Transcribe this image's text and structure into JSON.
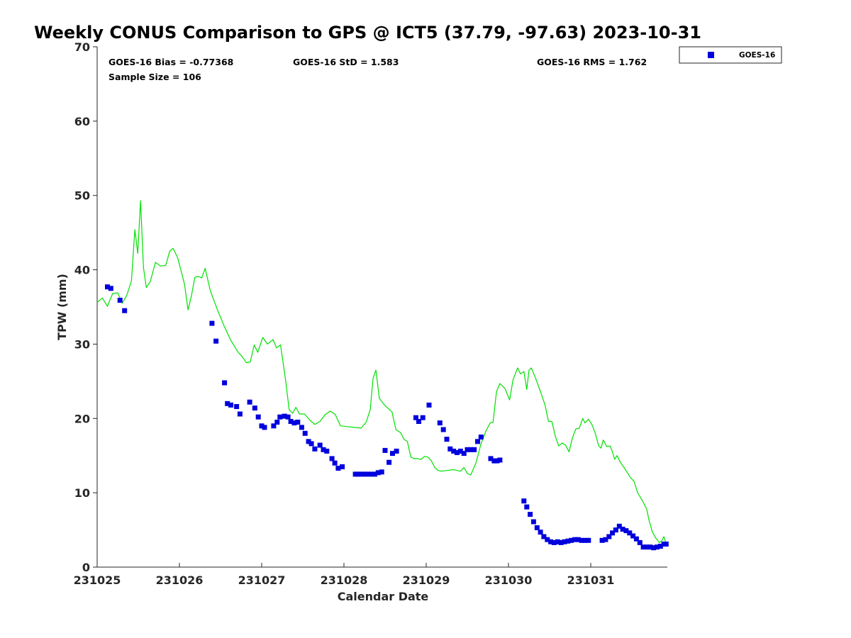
{
  "chart_data": {
    "type": "scatter",
    "title": "Weekly CONUS Comparison to GPS @ ICT5 (37.79, -97.63) 2023-10-31",
    "xlabel": "Calendar Date",
    "ylabel": "TPW (mm)",
    "xlim": [
      "2023-10-25",
      "2023-10-31T22:00"
    ],
    "ylim": [
      0,
      70
    ],
    "x_tick_labels": [
      "231025",
      "231026",
      "231027",
      "231028",
      "231029",
      "231030",
      "231031"
    ],
    "y_tick_labels": [
      "0",
      "10",
      "20",
      "30",
      "40",
      "50",
      "60",
      "70"
    ],
    "grid": false,
    "legend_position": "top-right, outside plot",
    "stats": {
      "bias": "GOES-16 Bias = -0.77368",
      "std": "GOES-16 StD = 1.583",
      "rms": "GOES-16 RMS = 1.762",
      "sample": "Sample Size = 106"
    },
    "legend": [
      {
        "label": "GOES-16",
        "color": "#0000dd",
        "marker": "square"
      }
    ],
    "colors": {
      "goes": "#0000dd",
      "gps": "#00e000"
    },
    "series": [
      {
        "name": "GOES-16",
        "marker": "square",
        "color": "#0000dd",
        "points": [
          [
            "2023-10-25T03:00",
            37.7
          ],
          [
            "2023-10-25T04:00",
            37.5
          ],
          [
            "2023-10-25T06:40",
            35.9
          ],
          [
            "2023-10-25T08:00",
            34.5
          ],
          [
            "2023-10-26T09:30",
            32.8
          ],
          [
            "2023-10-26T10:40",
            30.4
          ],
          [
            "2023-10-26T13:10",
            24.8
          ],
          [
            "2023-10-26T14:00",
            22.0
          ],
          [
            "2023-10-26T15:00",
            21.8
          ],
          [
            "2023-10-26T16:40",
            21.6
          ],
          [
            "2023-10-26T17:40",
            20.6
          ],
          [
            "2023-10-26T20:30",
            22.2
          ],
          [
            "2023-10-26T22:00",
            21.4
          ],
          [
            "2023-10-26T23:00",
            20.2
          ],
          [
            "2023-10-27T00:00",
            19.0
          ],
          [
            "2023-10-27T00:50",
            18.8
          ],
          [
            "2023-10-27T03:30",
            19.0
          ],
          [
            "2023-10-27T04:30",
            19.5
          ],
          [
            "2023-10-27T05:20",
            20.2
          ],
          [
            "2023-10-27T06:40",
            20.3
          ],
          [
            "2023-10-27T07:40",
            20.2
          ],
          [
            "2023-10-27T08:30",
            19.6
          ],
          [
            "2023-10-27T09:30",
            19.4
          ],
          [
            "2023-10-27T10:30",
            19.5
          ],
          [
            "2023-10-27T11:40",
            18.8
          ],
          [
            "2023-10-27T12:40",
            18.0
          ],
          [
            "2023-10-27T13:40",
            16.9
          ],
          [
            "2023-10-27T14:30",
            16.6
          ],
          [
            "2023-10-27T15:30",
            15.9
          ],
          [
            "2023-10-27T17:00",
            16.4
          ],
          [
            "2023-10-27T18:00",
            15.8
          ],
          [
            "2023-10-27T19:00",
            15.6
          ],
          [
            "2023-10-27T20:30",
            14.6
          ],
          [
            "2023-10-27T21:20",
            14.0
          ],
          [
            "2023-10-27T22:20",
            13.3
          ],
          [
            "2023-10-27T23:30",
            13.5
          ],
          [
            "2023-10-28T03:20",
            12.5
          ],
          [
            "2023-10-28T04:00",
            12.5
          ],
          [
            "2023-10-28T05:00",
            12.5
          ],
          [
            "2023-10-28T06:00",
            12.5
          ],
          [
            "2023-10-28T07:00",
            12.5
          ],
          [
            "2023-10-28T08:00",
            12.5
          ],
          [
            "2023-10-28T09:00",
            12.5
          ],
          [
            "2023-10-28T10:00",
            12.7
          ],
          [
            "2023-10-28T11:00",
            12.8
          ],
          [
            "2023-10-28T12:00",
            15.7
          ],
          [
            "2023-10-28T13:10",
            14.1
          ],
          [
            "2023-10-28T14:10",
            15.3
          ],
          [
            "2023-10-28T15:20",
            15.6
          ],
          [
            "2023-10-28T21:00",
            20.1
          ],
          [
            "2023-10-28T21:50",
            19.6
          ],
          [
            "2023-10-28T23:00",
            20.1
          ],
          [
            "2023-10-29T00:50",
            21.8
          ],
          [
            "2023-10-29T04:00",
            19.4
          ],
          [
            "2023-10-29T05:00",
            18.5
          ],
          [
            "2023-10-29T06:00",
            17.2
          ],
          [
            "2023-10-29T07:00",
            15.9
          ],
          [
            "2023-10-29T08:00",
            15.6
          ],
          [
            "2023-10-29T09:00",
            15.4
          ],
          [
            "2023-10-29T10:00",
            15.6
          ],
          [
            "2023-10-29T11:00",
            15.3
          ],
          [
            "2023-10-29T12:00",
            15.8
          ],
          [
            "2023-10-29T13:00",
            15.8
          ],
          [
            "2023-10-29T14:00",
            15.8
          ],
          [
            "2023-10-29T15:00",
            16.9
          ],
          [
            "2023-10-29T16:00",
            17.5
          ],
          [
            "2023-10-29T18:50",
            14.6
          ],
          [
            "2023-10-29T19:50",
            14.3
          ],
          [
            "2023-10-29T20:40",
            14.3
          ],
          [
            "2023-10-29T21:30",
            14.4
          ],
          [
            "2023-10-30T04:30",
            8.9
          ],
          [
            "2023-10-30T05:20",
            8.1
          ],
          [
            "2023-10-30T06:20",
            7.1
          ],
          [
            "2023-10-30T07:20",
            6.1
          ],
          [
            "2023-10-30T08:20",
            5.3
          ],
          [
            "2023-10-30T09:20",
            4.7
          ],
          [
            "2023-10-30T10:20",
            4.1
          ],
          [
            "2023-10-30T11:20",
            3.7
          ],
          [
            "2023-10-30T12:20",
            3.4
          ],
          [
            "2023-10-30T13:20",
            3.3
          ],
          [
            "2023-10-30T14:20",
            3.4
          ],
          [
            "2023-10-30T15:20",
            3.3
          ],
          [
            "2023-10-30T16:20",
            3.4
          ],
          [
            "2023-10-30T17:20",
            3.5
          ],
          [
            "2023-10-30T18:20",
            3.6
          ],
          [
            "2023-10-30T19:20",
            3.7
          ],
          [
            "2023-10-30T20:20",
            3.7
          ],
          [
            "2023-10-30T21:20",
            3.6
          ],
          [
            "2023-10-30T22:20",
            3.6
          ],
          [
            "2023-10-30T23:20",
            3.6
          ],
          [
            "2023-10-31T03:20",
            3.6
          ],
          [
            "2023-10-31T04:20",
            3.7
          ],
          [
            "2023-10-31T05:20",
            4.1
          ],
          [
            "2023-10-31T06:20",
            4.6
          ],
          [
            "2023-10-31T07:20",
            5.0
          ],
          [
            "2023-10-31T08:20",
            5.5
          ],
          [
            "2023-10-31T09:20",
            5.1
          ],
          [
            "2023-10-31T10:20",
            4.9
          ],
          [
            "2023-10-31T11:20",
            4.6
          ],
          [
            "2023-10-31T12:20",
            4.2
          ],
          [
            "2023-10-31T13:20",
            3.8
          ],
          [
            "2023-10-31T14:20",
            3.3
          ],
          [
            "2023-10-31T15:20",
            2.7
          ],
          [
            "2023-10-31T16:20",
            2.7
          ],
          [
            "2023-10-31T17:20",
            2.7
          ],
          [
            "2023-10-31T18:20",
            2.6
          ],
          [
            "2023-10-31T19:20",
            2.7
          ],
          [
            "2023-10-31T20:20",
            2.8
          ],
          [
            "2023-10-31T21:20",
            3.1
          ],
          [
            "2023-10-31T22:00",
            3.1
          ]
        ]
      },
      {
        "marker": "line",
        "color": "#00e000",
        "points": [
          [
            "2023-10-25T00:00",
            35.6
          ],
          [
            "2023-10-25T01:30",
            36.2
          ],
          [
            "2023-10-25T03:00",
            35.1
          ],
          [
            "2023-10-25T04:30",
            36.8
          ],
          [
            "2023-10-25T06:00",
            36.9
          ],
          [
            "2023-10-25T07:20",
            35.5
          ],
          [
            "2023-10-25T08:40",
            36.6
          ],
          [
            "2023-10-25T10:00",
            38.5
          ],
          [
            "2023-10-25T11:00",
            45.4
          ],
          [
            "2023-10-25T11:50",
            42.2
          ],
          [
            "2023-10-25T12:40",
            49.3
          ],
          [
            "2023-10-25T13:30",
            40.3
          ],
          [
            "2023-10-25T14:20",
            37.6
          ],
          [
            "2023-10-25T15:30",
            38.4
          ],
          [
            "2023-10-25T17:00",
            41.0
          ],
          [
            "2023-10-25T18:30",
            40.5
          ],
          [
            "2023-10-25T20:00",
            40.6
          ],
          [
            "2023-10-25T21:10",
            42.5
          ],
          [
            "2023-10-25T22:10",
            42.9
          ],
          [
            "2023-10-25T23:30",
            41.6
          ],
          [
            "2023-10-26T01:30",
            38.0
          ],
          [
            "2023-10-26T02:30",
            34.6
          ],
          [
            "2023-10-26T03:30",
            36.5
          ],
          [
            "2023-10-26T04:30",
            39.0
          ],
          [
            "2023-10-26T05:30",
            39.1
          ],
          [
            "2023-10-26T06:30",
            38.9
          ],
          [
            "2023-10-26T07:30",
            40.2
          ],
          [
            "2023-10-26T09:00",
            37.2
          ],
          [
            "2023-10-26T11:00",
            34.7
          ],
          [
            "2023-10-26T13:00",
            32.5
          ],
          [
            "2023-10-26T15:00",
            30.5
          ],
          [
            "2023-10-26T17:00",
            29.0
          ],
          [
            "2023-10-26T18:30",
            28.2
          ],
          [
            "2023-10-26T19:30",
            27.5
          ],
          [
            "2023-10-26T20:40",
            27.6
          ],
          [
            "2023-10-26T21:50",
            29.9
          ],
          [
            "2023-10-26T22:50",
            28.9
          ],
          [
            "2023-10-27T00:20",
            30.9
          ],
          [
            "2023-10-27T01:40",
            30.0
          ],
          [
            "2023-10-27T03:20",
            30.6
          ],
          [
            "2023-10-27T04:20",
            29.5
          ],
          [
            "2023-10-27T05:30",
            29.9
          ],
          [
            "2023-10-27T07:00",
            25.1
          ],
          [
            "2023-10-27T08:00",
            21.2
          ],
          [
            "2023-10-27T09:00",
            20.7
          ],
          [
            "2023-10-27T10:00",
            21.5
          ],
          [
            "2023-10-27T11:00",
            20.6
          ],
          [
            "2023-10-27T12:30",
            20.6
          ],
          [
            "2023-10-27T14:00",
            19.8
          ],
          [
            "2023-10-27T15:30",
            19.2
          ],
          [
            "2023-10-27T17:00",
            19.6
          ],
          [
            "2023-10-27T18:30",
            20.5
          ],
          [
            "2023-10-27T20:00",
            21.0
          ],
          [
            "2023-10-27T21:30",
            20.5
          ],
          [
            "2023-10-27T23:00",
            19.0
          ],
          [
            "2023-10-28T01:00",
            18.9
          ],
          [
            "2023-10-28T03:00",
            18.8
          ],
          [
            "2023-10-28T05:00",
            18.7
          ],
          [
            "2023-10-28T06:30",
            19.5
          ],
          [
            "2023-10-28T07:40",
            21.2
          ],
          [
            "2023-10-28T08:30",
            25.4
          ],
          [
            "2023-10-28T09:20",
            26.5
          ],
          [
            "2023-10-28T10:20",
            22.7
          ],
          [
            "2023-10-28T11:40",
            21.9
          ],
          [
            "2023-10-28T13:00",
            21.3
          ],
          [
            "2023-10-28T14:00",
            20.9
          ],
          [
            "2023-10-28T15:10",
            18.5
          ],
          [
            "2023-10-28T16:30",
            18.1
          ],
          [
            "2023-10-28T17:30",
            17.2
          ],
          [
            "2023-10-28T18:30",
            16.9
          ],
          [
            "2023-10-28T19:30",
            14.8
          ],
          [
            "2023-10-28T20:30",
            14.6
          ],
          [
            "2023-10-28T21:30",
            14.6
          ],
          [
            "2023-10-28T22:30",
            14.5
          ],
          [
            "2023-10-28T23:30",
            14.9
          ],
          [
            "2023-10-29T00:30",
            14.8
          ],
          [
            "2023-10-29T01:30",
            14.3
          ],
          [
            "2023-10-29T02:30",
            13.4
          ],
          [
            "2023-10-29T03:30",
            13.0
          ],
          [
            "2023-10-29T04:30",
            12.9
          ],
          [
            "2023-10-29T06:00",
            13.0
          ],
          [
            "2023-10-29T08:00",
            13.1
          ],
          [
            "2023-10-29T10:00",
            12.9
          ],
          [
            "2023-10-29T11:00",
            13.4
          ],
          [
            "2023-10-29T12:00",
            12.6
          ],
          [
            "2023-10-29T13:00",
            12.4
          ],
          [
            "2023-10-29T14:30",
            14.0
          ],
          [
            "2023-10-29T16:00",
            16.6
          ],
          [
            "2023-10-29T17:30",
            18.4
          ],
          [
            "2023-10-29T18:40",
            19.4
          ],
          [
            "2023-10-29T19:30",
            19.5
          ],
          [
            "2023-10-29T20:30",
            23.6
          ],
          [
            "2023-10-29T21:30",
            24.7
          ],
          [
            "2023-10-29T23:00",
            24.0
          ],
          [
            "2023-10-30T00:20",
            22.5
          ],
          [
            "2023-10-30T01:20",
            25.2
          ],
          [
            "2023-10-30T02:40",
            26.8
          ],
          [
            "2023-10-30T03:30",
            26.0
          ],
          [
            "2023-10-30T04:30",
            26.3
          ],
          [
            "2023-10-30T05:20",
            23.9
          ],
          [
            "2023-10-30T06:00",
            26.5
          ],
          [
            "2023-10-30T06:40",
            26.8
          ],
          [
            "2023-10-30T08:00",
            25.3
          ],
          [
            "2023-10-30T09:20",
            23.6
          ],
          [
            "2023-10-30T10:40",
            21.8
          ],
          [
            "2023-10-30T11:40",
            19.6
          ],
          [
            "2023-10-30T12:40",
            19.6
          ],
          [
            "2023-10-30T13:40",
            17.6
          ],
          [
            "2023-10-30T14:40",
            16.3
          ],
          [
            "2023-10-30T15:40",
            16.7
          ],
          [
            "2023-10-30T16:40",
            16.4
          ],
          [
            "2023-10-30T17:40",
            15.5
          ],
          [
            "2023-10-30T18:40",
            17.4
          ],
          [
            "2023-10-30T19:40",
            18.6
          ],
          [
            "2023-10-30T20:40",
            18.7
          ],
          [
            "2023-10-30T21:40",
            20.0
          ],
          [
            "2023-10-30T22:20",
            19.4
          ],
          [
            "2023-10-30T23:20",
            19.9
          ],
          [
            "2023-10-31T00:20",
            19.2
          ],
          [
            "2023-10-31T01:20",
            18.0
          ],
          [
            "2023-10-31T02:20",
            16.3
          ],
          [
            "2023-10-31T03:00",
            16.0
          ],
          [
            "2023-10-31T03:40",
            17.1
          ],
          [
            "2023-10-31T04:40",
            16.2
          ],
          [
            "2023-10-31T05:40",
            16.3
          ],
          [
            "2023-10-31T06:20",
            15.5
          ],
          [
            "2023-10-31T07:00",
            14.5
          ],
          [
            "2023-10-31T07:40",
            15.0
          ],
          [
            "2023-10-31T08:40",
            14.1
          ],
          [
            "2023-10-31T10:00",
            13.2
          ],
          [
            "2023-10-31T11:30",
            12.1
          ],
          [
            "2023-10-31T12:40",
            11.5
          ],
          [
            "2023-10-31T13:40",
            10.0
          ],
          [
            "2023-10-31T15:00",
            9.0
          ],
          [
            "2023-10-31T16:20",
            7.8
          ],
          [
            "2023-10-31T17:00",
            6.3
          ],
          [
            "2023-10-31T18:00",
            4.7
          ],
          [
            "2023-10-31T19:00",
            3.9
          ],
          [
            "2023-10-31T20:00",
            3.3
          ],
          [
            "2023-10-31T20:40",
            3.5
          ],
          [
            "2023-10-31T21:20",
            4.1
          ],
          [
            "2023-10-31T22:00",
            3.2
          ]
        ]
      }
    ]
  }
}
